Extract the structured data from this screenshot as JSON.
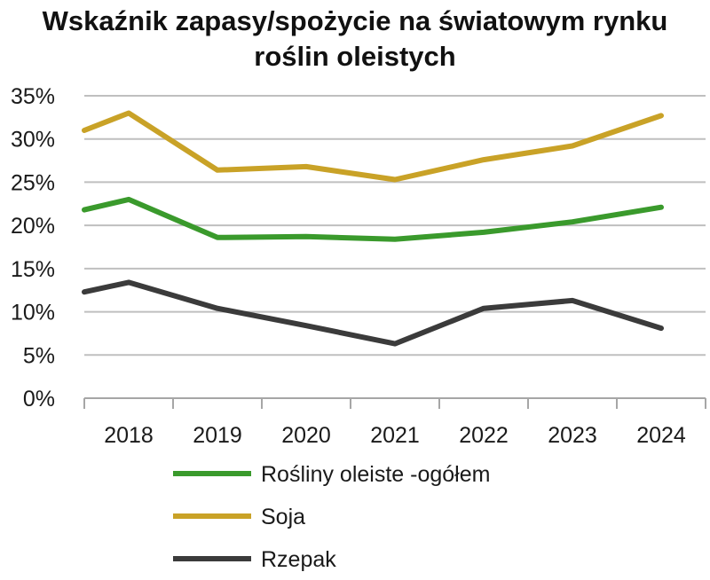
{
  "chart_data": {
    "type": "line",
    "title_lines": [
      "Wskaźnik zapasy/spożycie na światowym rynku",
      "roślin oleistych"
    ],
    "x": [
      "2018",
      "2019",
      "2020",
      "2021",
      "2022",
      "2023",
      "2024"
    ],
    "x_positions": [
      2017.5,
      2018,
      2019,
      2020,
      2021,
      2022,
      2023,
      2024
    ],
    "ylim": [
      0,
      35
    ],
    "yticks": [
      0,
      5,
      10,
      15,
      20,
      25,
      30,
      35
    ],
    "ytick_labels": [
      "0%",
      "5%",
      "10%",
      "15%",
      "20%",
      "25%",
      "30%",
      "35%"
    ],
    "grid": true,
    "legend_position": "bottom",
    "series": [
      {
        "name": "Rośliny oleiste -ogółem",
        "color": "#3a9a2c",
        "points": [
          [
            2017.5,
            21.8
          ],
          [
            2018,
            23.0
          ],
          [
            2019,
            18.6
          ],
          [
            2020,
            18.7
          ],
          [
            2021,
            18.4
          ],
          [
            2022,
            19.2
          ],
          [
            2023,
            20.4
          ],
          [
            2024,
            22.1
          ]
        ]
      },
      {
        "name": "Soja",
        "color": "#c9a227",
        "points": [
          [
            2017.5,
            31.0
          ],
          [
            2018,
            33.0
          ],
          [
            2019,
            26.4
          ],
          [
            2020,
            26.8
          ],
          [
            2021,
            25.3
          ],
          [
            2022,
            27.6
          ],
          [
            2023,
            29.2
          ],
          [
            2024,
            32.7
          ]
        ]
      },
      {
        "name": "Rzepak",
        "color": "#3b3b3b",
        "points": [
          [
            2017.5,
            12.3
          ],
          [
            2018,
            13.4
          ],
          [
            2019,
            10.4
          ],
          [
            2020,
            8.4
          ],
          [
            2021,
            6.3
          ],
          [
            2022,
            10.4
          ],
          [
            2023,
            11.3
          ],
          [
            2024,
            8.1
          ]
        ]
      }
    ]
  }
}
